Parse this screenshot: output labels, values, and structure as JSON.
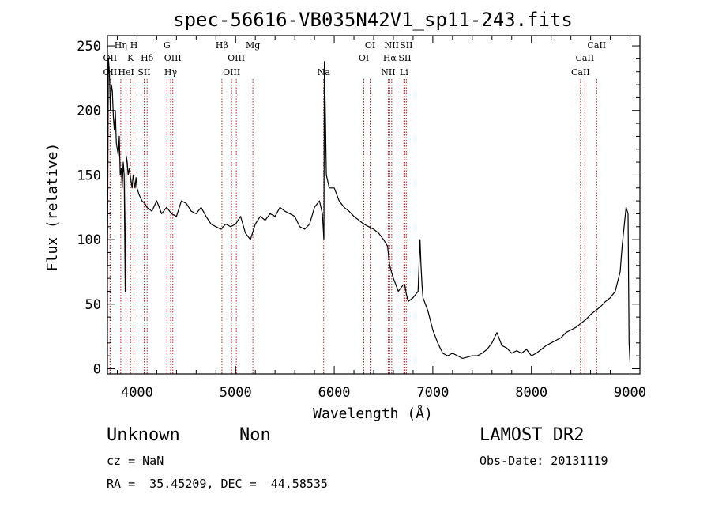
{
  "chart_data": {
    "type": "line",
    "title": "spec-56616-VB035N42V1_sp11-243.fits",
    "xlabel": "Wavelength (Å)",
    "ylabel": "Flux (relative)",
    "xlim": [
      3700,
      9100
    ],
    "ylim": [
      -4,
      258
    ],
    "xticks": [
      4000,
      5000,
      6000,
      7000,
      8000,
      9000
    ],
    "yticks": [
      0,
      50,
      100,
      150,
      200,
      250
    ],
    "line_color": "#000000",
    "marker_color": "#b22222",
    "series": [
      {
        "x": [
          3700,
          3710,
          3720,
          3730,
          3740,
          3750,
          3760,
          3770,
          3780,
          3790,
          3800,
          3810,
          3820,
          3830,
          3840,
          3850,
          3860,
          3870,
          3880,
          3890,
          3900,
          3910,
          3920,
          3930,
          3940,
          3950,
          3960,
          3970,
          3980,
          3990,
          4000,
          4020,
          4050,
          4080,
          4100,
          4150,
          4200,
          4250,
          4300,
          4350,
          4400,
          4450,
          4500,
          4550,
          4600,
          4650,
          4700,
          4750,
          4800,
          4850,
          4900,
          4950,
          5000,
          5050,
          5100,
          5150,
          5200,
          5250,
          5300,
          5350,
          5400,
          5450,
          5500,
          5550,
          5600,
          5650,
          5700,
          5750,
          5800,
          5850,
          5880,
          5895,
          5900,
          5910,
          5920,
          5950,
          6000,
          6050,
          6100,
          6150,
          6200,
          6250,
          6300,
          6350,
          6400,
          6450,
          6500,
          6540,
          6563,
          6580,
          6600,
          6650,
          6700,
          6716,
          6731,
          6750,
          6800,
          6850,
          6870,
          6880,
          6890,
          6900,
          6950,
          7000,
          7050,
          7100,
          7150,
          7200,
          7250,
          7300,
          7350,
          7400,
          7450,
          7500,
          7550,
          7600,
          7650,
          7700,
          7750,
          7800,
          7850,
          7900,
          7950,
          8000,
          8050,
          8100,
          8150,
          8200,
          8250,
          8300,
          8350,
          8400,
          8450,
          8500,
          8550,
          8600,
          8650,
          8700,
          8750,
          8800,
          8850,
          8900,
          8920,
          8940,
          8960,
          8980,
          8990,
          9000
        ],
        "y": [
          80,
          240,
          230,
          200,
          220,
          215,
          195,
          185,
          200,
          175,
          170,
          165,
          180,
          150,
          155,
          140,
          160,
          150,
          60,
          165,
          160,
          150,
          155,
          150,
          145,
          140,
          150,
          145,
          140,
          148,
          140,
          135,
          130,
          128,
          125,
          122,
          130,
          120,
          125,
          120,
          118,
          130,
          128,
          122,
          120,
          125,
          118,
          112,
          110,
          108,
          112,
          110,
          112,
          118,
          105,
          100,
          112,
          118,
          115,
          120,
          118,
          125,
          122,
          120,
          118,
          110,
          108,
          112,
          125,
          130,
          120,
          100,
          238,
          200,
          150,
          140,
          140,
          130,
          125,
          122,
          118,
          115,
          112,
          110,
          108,
          105,
          100,
          95,
          80,
          75,
          70,
          60,
          65,
          65,
          58,
          52,
          55,
          60,
          100,
          80,
          65,
          55,
          45,
          30,
          20,
          12,
          10,
          12,
          10,
          8,
          9,
          10,
          10,
          12,
          15,
          20,
          28,
          18,
          16,
          12,
          14,
          12,
          15,
          10,
          12,
          15,
          18,
          20,
          22,
          24,
          28,
          30,
          32,
          35,
          38,
          42,
          45,
          48,
          52,
          55,
          60,
          75,
          95,
          110,
          125,
          120,
          20,
          5
        ]
      }
    ],
    "line_markers": [
      {
        "x": 3727,
        "label": "OII",
        "row": 2
      },
      {
        "x": 3727,
        "label": "OII",
        "row": 3
      },
      {
        "x": 3835,
        "label": "Hη",
        "row": 1
      },
      {
        "x": 3889,
        "label": "HeI",
        "row": 3
      },
      {
        "x": 3934,
        "label": "K",
        "row": 2
      },
      {
        "x": 3969,
        "label": "H",
        "row": 1
      },
      {
        "x": 4072,
        "label": "SII",
        "row": 3
      },
      {
        "x": 4102,
        "label": "Hδ",
        "row": 2
      },
      {
        "x": 4304,
        "label": "G",
        "row": 1
      },
      {
        "x": 4341,
        "label": "Hγ",
        "row": 3
      },
      {
        "x": 4363,
        "label": "OIII",
        "row": 2
      },
      {
        "x": 4861,
        "label": "Hβ",
        "row": 1
      },
      {
        "x": 4959,
        "label": "OIII",
        "row": 3
      },
      {
        "x": 5007,
        "label": "OIII",
        "row": 2
      },
      {
        "x": 5175,
        "label": "Mg",
        "row": 1
      },
      {
        "x": 5893,
        "label": "Na",
        "row": 3
      },
      {
        "x": 6300,
        "label": "OI",
        "row": 2
      },
      {
        "x": 6364,
        "label": "OI",
        "row": 1
      },
      {
        "x": 6548,
        "label": "NII",
        "row": 3
      },
      {
        "x": 6563,
        "label": "Hα",
        "row": 2
      },
      {
        "x": 6583,
        "label": "NII",
        "row": 1
      },
      {
        "x": 6707,
        "label": "Li",
        "row": 3
      },
      {
        "x": 6716,
        "label": "SII",
        "row": 2
      },
      {
        "x": 6731,
        "label": "SII",
        "row": 1
      },
      {
        "x": 8498,
        "label": "CaII",
        "row": 3
      },
      {
        "x": 8542,
        "label": "CaII",
        "row": 2
      },
      {
        "x": 8662,
        "label": "CaII",
        "row": 1
      }
    ]
  },
  "footer": {
    "class_label": "Unknown",
    "subclass_label": "Non",
    "redshift": "cz = NaN",
    "coords": "RA =  35.45209, DEC =  44.58535",
    "survey": "LAMOST DR2",
    "obs_date": "Obs-Date: 20131119"
  }
}
